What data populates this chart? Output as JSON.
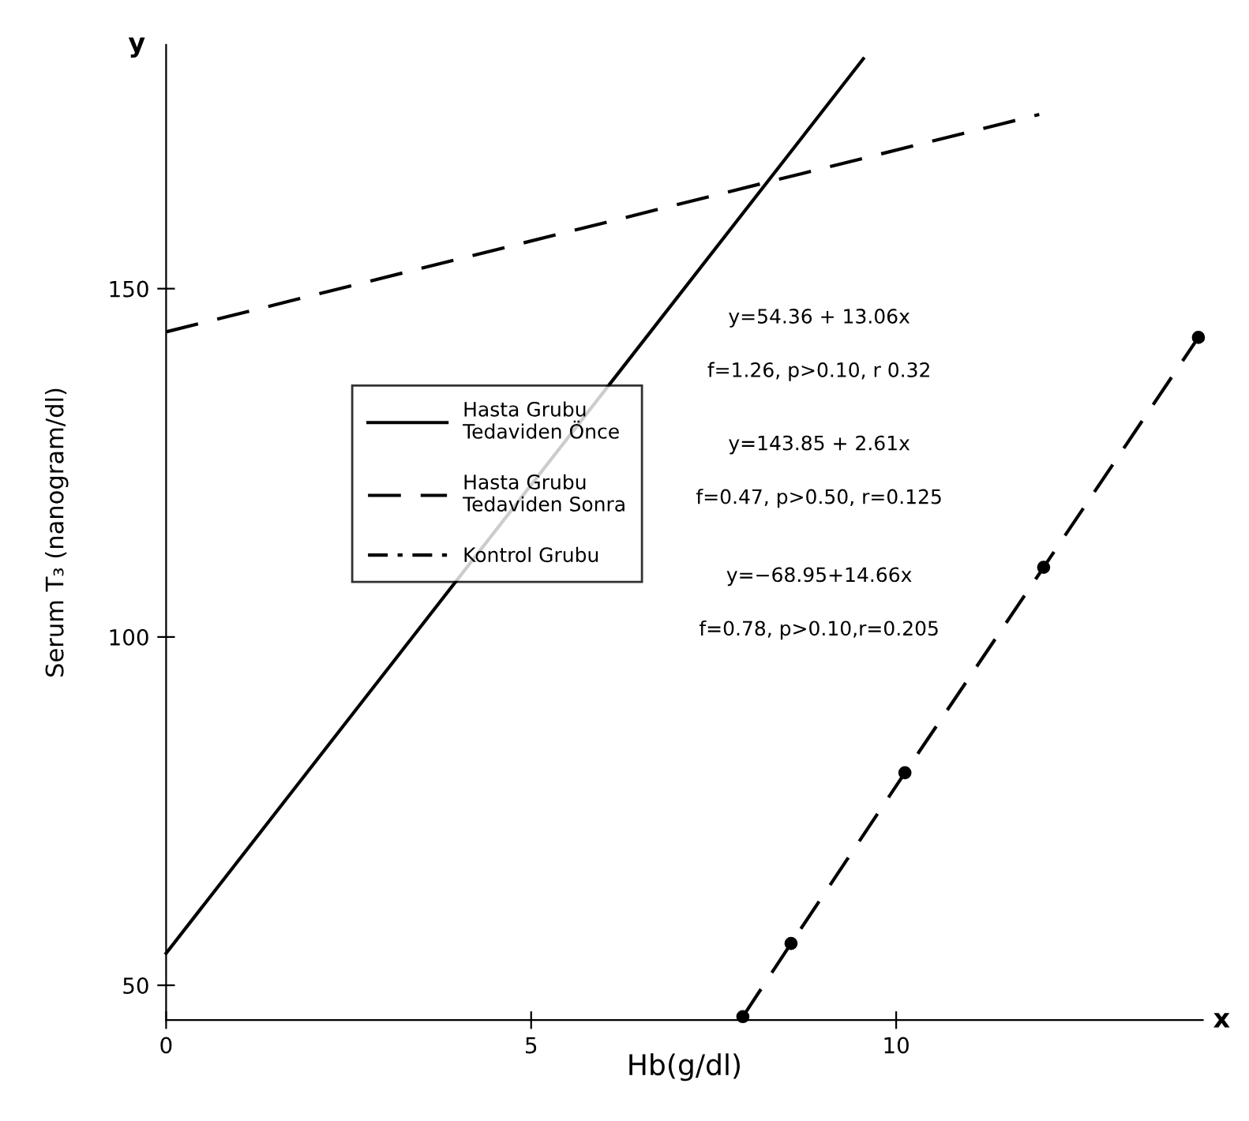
{
  "chart_data": {
    "type": "line",
    "xlabel": "Hb(g/dl)",
    "ylabel": "Serum T₃ (nanogram/dl)",
    "xlim": [
      0,
      14.2
    ],
    "ylim": [
      45,
      185
    ],
    "xticks": [
      0,
      5,
      10
    ],
    "yticks": [
      50,
      100,
      150
    ],
    "grid": false,
    "legend": "center left",
    "series": [
      {
        "name": "Hasta Grubu\nTedaviden Önce",
        "color": "#000000",
        "line_style": "solid",
        "marker": "none",
        "x": [
          0,
          9.55
        ],
        "values": [
          54.6,
          183
        ]
      },
      {
        "name": "Hasta Grubu\nTedaviden Sonra",
        "color": "#000000",
        "line_style": "dashed",
        "marker": "none",
        "x": [
          0,
          11.96
        ],
        "values": [
          143.8,
          175
        ]
      },
      {
        "name": "Kontrol Grubu",
        "color": "#000000",
        "line_style": "dashed",
        "marker": "circle",
        "x": [
          7.9,
          8.56,
          10.12,
          12.02,
          14.14
        ],
        "values": [
          45.5,
          56,
          80.5,
          110,
          143
        ]
      }
    ],
    "annotations": [
      "y=54.36 + 13.06x",
      "f=1.26, p>0.10, r 0.32",
      "y=143.85 + 2.61x",
      "f=0.47, p>0.50, r=0.125",
      "y=−68.95+14.66x",
      "f=0.78, p>0.10,r=0.205",
      "y",
      "x"
    ]
  }
}
